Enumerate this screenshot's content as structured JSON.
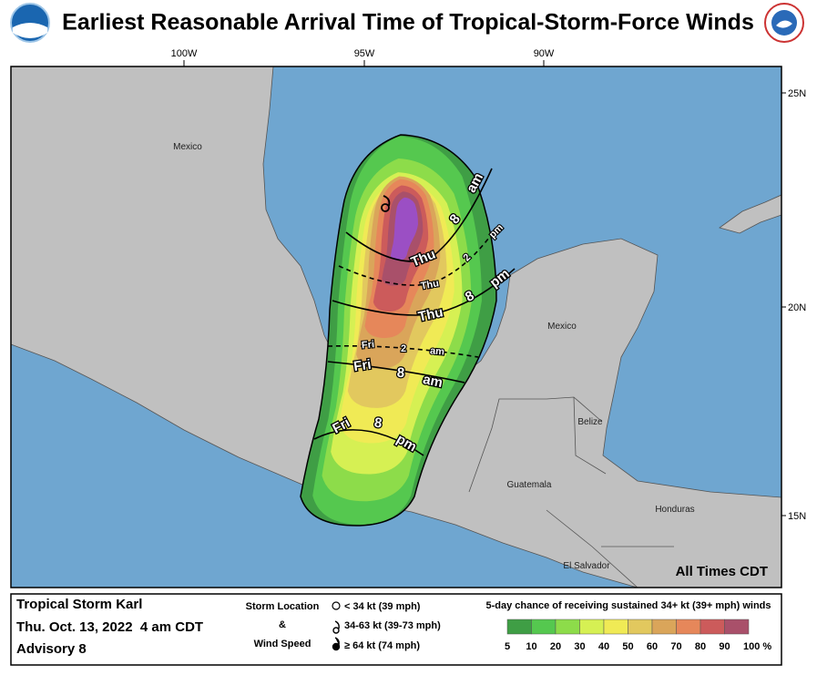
{
  "header": {
    "title": "Earliest Reasonable Arrival Time of Tropical-Storm-Force Winds"
  },
  "map": {
    "longitude_labels": [
      "100W",
      "95W",
      "90W"
    ],
    "latitude_labels": [
      "25N",
      "20N",
      "15N"
    ],
    "place_labels": [
      "Mexico",
      "Mexico",
      "Belize",
      "Guatemala",
      "Honduras",
      "El Salvador"
    ],
    "contours": [
      {
        "words": [
          "Thu",
          "8",
          "am"
        ],
        "dashed": false
      },
      {
        "words": [
          "Thu",
          "2",
          "pm"
        ],
        "dashed": true
      },
      {
        "words": [
          "Thu",
          "8",
          "pm"
        ],
        "dashed": false
      },
      {
        "words": [
          "Fri",
          "2",
          "am"
        ],
        "dashed": true
      },
      {
        "words": [
          "Fri",
          "8",
          "am"
        ],
        "dashed": false
      },
      {
        "words": [
          "Fri",
          "8",
          "pm"
        ],
        "dashed": false
      }
    ],
    "note": "All Times CDT"
  },
  "footer": {
    "storm": "Tropical Storm Karl",
    "issued": "Thu. Oct. 13, 2022  4 am CDT",
    "advisory": "Advisory 8",
    "location_legend": {
      "title_lines": [
        "Storm Location",
        "&",
        "Wind Speed"
      ],
      "items": [
        "< 34 kt (39 mph)",
        "34-63 kt (39-73 mph)",
        "≥ 64 kt (74 mph)"
      ]
    },
    "probability_scale": {
      "title": "5-day chance of receiving sustained 34+ kt (39+ mph) winds",
      "labels": [
        "5",
        "10",
        "20",
        "30",
        "40",
        "50",
        "60",
        "70",
        "80",
        "90",
        "100 %"
      ],
      "colors": [
        "#3f9e45",
        "#55c84f",
        "#8ddc4a",
        "#d6f053",
        "#f0ea55",
        "#e2c85e",
        "#daa55a",
        "#e6875a",
        "#cc5b5b",
        "#a9506a",
        "#9b4fc4"
      ]
    }
  }
}
